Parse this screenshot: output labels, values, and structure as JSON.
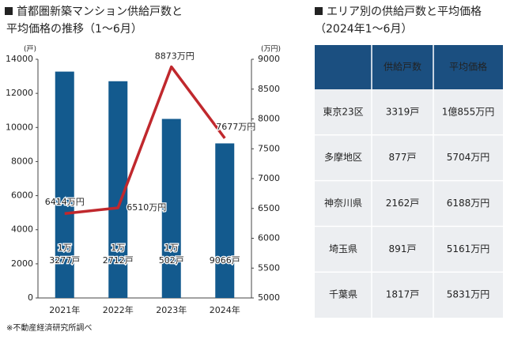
{
  "chart_data": {
    "type": "bar_line",
    "title": [
      "首都圏新築マンション供給戸数と",
      "平均価格の推移（1〜6月）"
    ],
    "categories": [
      "2021年",
      "2022年",
      "2023年",
      "2024年"
    ],
    "series": [
      {
        "name": "供給戸数",
        "type": "bar",
        "color": "#135a8e",
        "values": [
          13277,
          12712,
          10502,
          9066
        ],
        "value_labels": [
          "1万3277戸",
          "1万2712戸",
          "1万502戸",
          "9066戸"
        ]
      },
      {
        "name": "平均価格",
        "type": "line",
        "axis": "y2",
        "color": "#c0282d",
        "values": [
          6414,
          6510,
          8873,
          7677
        ],
        "value_labels": [
          "6414万円",
          "6510万円",
          "8873万円",
          "7677万円"
        ]
      }
    ],
    "y_unit": "(戸)",
    "y2_unit": "(万円)",
    "ylim": [
      0,
      14000
    ],
    "yticks": [
      0,
      2000,
      4000,
      6000,
      8000,
      10000,
      12000,
      14000
    ],
    "y2lim": [
      5000,
      9000
    ],
    "y2ticks": [
      5000,
      5500,
      6000,
      6500,
      7000,
      7500,
      8000,
      8500,
      9000
    ],
    "source": "※不動産経済研究所調べ"
  },
  "table": {
    "title": "エリア別の供給戸数と平均価格",
    "subtitle": "（2024年1〜6月）",
    "header": [
      "供給戸数",
      "平均価格"
    ],
    "rows": [
      [
        "東京23区",
        "3319戸",
        "1億855万円"
      ],
      [
        "多摩地区",
        "877戸",
        "5704万円"
      ],
      [
        "神奈川県",
        "2162戸",
        "6188万円"
      ],
      [
        "埼玉県",
        "891戸",
        "5161万円"
      ],
      [
        "千葉県",
        "1817戸",
        "5831万円"
      ]
    ]
  }
}
